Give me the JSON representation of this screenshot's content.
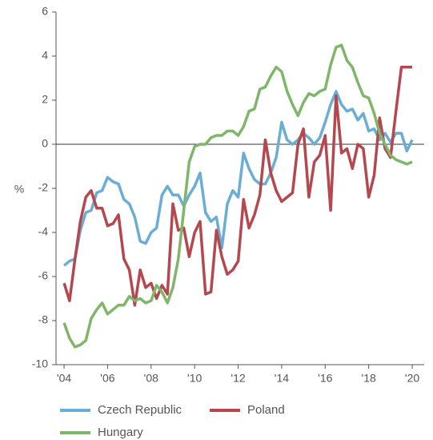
{
  "chart_data": {
    "type": "line",
    "y_label": "%",
    "x": [
      2004.0,
      2004.25,
      2004.5,
      2004.75,
      2005.0,
      2005.25,
      2005.5,
      2005.75,
      2006.0,
      2006.25,
      2006.5,
      2006.75,
      2007.0,
      2007.25,
      2007.5,
      2007.75,
      2008.0,
      2008.25,
      2008.5,
      2008.75,
      2009.0,
      2009.25,
      2009.5,
      2009.75,
      2010.0,
      2010.25,
      2010.5,
      2010.75,
      2011.0,
      2011.25,
      2011.5,
      2011.75,
      2012.0,
      2012.25,
      2012.5,
      2012.75,
      2013.0,
      2013.25,
      2013.5,
      2013.75,
      2014.0,
      2014.25,
      2014.5,
      2014.75,
      2015.0,
      2015.25,
      2015.5,
      2015.75,
      2016.0,
      2016.25,
      2016.5,
      2016.75,
      2017.0,
      2017.25,
      2017.5,
      2017.75,
      2018.0,
      2018.25,
      2018.5,
      2018.75,
      2019.0,
      2019.25,
      2019.5,
      2019.75,
      2020.0
    ],
    "series": [
      {
        "name": "Czech Republic",
        "color": "#6aaed6",
        "values": [
          -5.5,
          -5.3,
          -5.2,
          -3.9,
          -3.1,
          -3.0,
          -2.2,
          -2.1,
          -1.5,
          -1.7,
          -1.8,
          -2.5,
          -2.7,
          -3.3,
          -4.4,
          -4.5,
          -4.0,
          -3.8,
          -2.3,
          -1.9,
          -2.3,
          -2.3,
          -2.8,
          -2.3,
          -1.9,
          -1.3,
          -3.1,
          -3.5,
          -3.3,
          -4.7,
          -2.7,
          -2.1,
          -2.4,
          -0.4,
          -1.1,
          -1.6,
          -1.8,
          -1.8,
          -1.3,
          -0.6,
          1.0,
          0.2,
          0.0,
          0.2,
          0.5,
          0.3,
          0.0,
          0.3,
          1.0,
          1.8,
          2.4,
          1.8,
          1.5,
          1.6,
          1.1,
          1.4,
          0.6,
          0.7,
          0.2,
          0.5,
          0.1,
          0.5,
          0.5,
          -0.3,
          0.2
        ]
      },
      {
        "name": "Poland",
        "color": "#b5474f",
        "values": [
          -6.3,
          -7.1,
          -5.2,
          -3.5,
          -2.4,
          -2.1,
          -2.9,
          -2.9,
          -3.7,
          -3.6,
          -3.2,
          -5.2,
          -5.7,
          -7.3,
          -5.7,
          -6.5,
          -6.3,
          -7.0,
          -6.4,
          -6.8,
          -2.7,
          -3.9,
          -3.8,
          -5.1,
          -4.0,
          -3.5,
          -6.8,
          -6.7,
          -3.9,
          -5.1,
          -5.9,
          -5.7,
          -5.3,
          -2.5,
          -3.8,
          -3.2,
          -2.3,
          0.2,
          -1.3,
          -2.1,
          -2.6,
          -2.4,
          -2.2,
          0.0,
          0.7,
          -2.4,
          -0.8,
          -0.5,
          0.4,
          -3.0,
          2.2,
          -0.4,
          -0.2,
          -1.1,
          0.0,
          -0.2,
          -2.4,
          -1.4,
          1.2,
          -0.2,
          -0.6,
          1.5,
          3.5,
          3.5,
          3.5
        ]
      },
      {
        "name": "Hungary",
        "color": "#7fb66a",
        "values": [
          -8.1,
          -8.8,
          -9.2,
          -9.1,
          -8.9,
          -7.9,
          -7.5,
          -7.2,
          -7.7,
          -7.5,
          -7.3,
          -7.3,
          -6.9,
          -7.1,
          -7.0,
          -7.2,
          -7.1,
          -6.4,
          -6.7,
          -7.2,
          -6.5,
          -5.2,
          -3.0,
          -0.8,
          -0.1,
          0.0,
          0.0,
          0.3,
          0.4,
          0.4,
          0.6,
          0.6,
          0.4,
          0.8,
          1.5,
          1.6,
          2.5,
          2.6,
          3.1,
          3.5,
          3.3,
          2.4,
          1.8,
          1.3,
          1.9,
          2.3,
          2.2,
          2.4,
          2.5,
          3.6,
          4.4,
          4.5,
          3.8,
          3.5,
          2.8,
          2.2,
          2.1,
          1.4,
          0.5,
          0.0,
          -0.5,
          -0.7,
          -0.8,
          -0.9,
          -0.8
        ]
      }
    ],
    "xlim": [
      2003.63,
      2020.55
    ],
    "xticks": [
      {
        "value": 2004,
        "label": "'04"
      },
      {
        "value": 2006,
        "label": "'06"
      },
      {
        "value": 2008,
        "label": "'08"
      },
      {
        "value": 2010,
        "label": "'10"
      },
      {
        "value": 2012,
        "label": "'12"
      },
      {
        "value": 2014,
        "label": "'14"
      },
      {
        "value": 2016,
        "label": "'16"
      },
      {
        "value": 2018,
        "label": "'18"
      },
      {
        "value": 2020,
        "label": "'20"
      }
    ],
    "ylim": [
      -10,
      6
    ],
    "yticks": [
      -10,
      -8,
      -6,
      -4,
      -2,
      0,
      2,
      4,
      6
    ],
    "legend": "bottom"
  }
}
